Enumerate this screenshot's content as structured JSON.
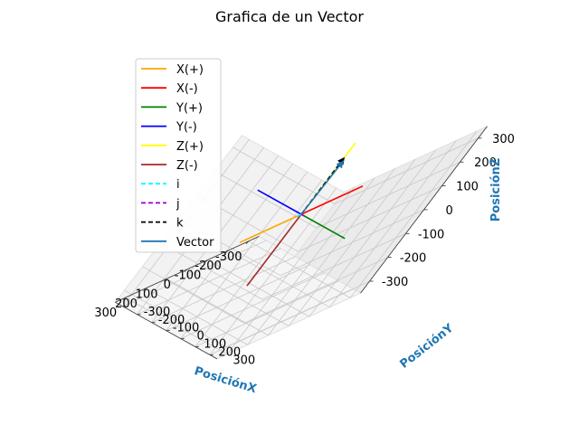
{
  "chart_data": {
    "type": "3d-line",
    "title": "Grafica de un Vector",
    "xlabel": "PosiciónX",
    "ylabel": "PosiciónY",
    "zlabel": "PosiciónZ",
    "xlim": [
      -350,
      350
    ],
    "ylim": [
      -350,
      350
    ],
    "zlim": [
      -350,
      350
    ],
    "x_ticks": [
      -300,
      -200,
      -100,
      0,
      100,
      200,
      300
    ],
    "y_ticks": [
      -300,
      -200,
      -100,
      0,
      100,
      200,
      300
    ],
    "z_ticks": [
      -300,
      -200,
      -100,
      0,
      100,
      200,
      300
    ],
    "grid": true,
    "legend_position": "upper-left",
    "series": [
      {
        "name": "X(+)",
        "color": "#ffa500",
        "style": "solid",
        "from": [
          0,
          0,
          0
        ],
        "to": [
          300,
          0,
          0
        ]
      },
      {
        "name": "X(-)",
        "color": "#ff0000",
        "style": "solid",
        "from": [
          0,
          0,
          0
        ],
        "to": [
          -300,
          0,
          0
        ]
      },
      {
        "name": "Y(+)",
        "color": "#008000",
        "style": "solid",
        "from": [
          0,
          0,
          0
        ],
        "to": [
          0,
          300,
          0
        ]
      },
      {
        "name": "Y(-)",
        "color": "#0000ff",
        "style": "solid",
        "from": [
          0,
          0,
          0
        ],
        "to": [
          0,
          -300,
          0
        ]
      },
      {
        "name": "Z(+)",
        "color": "#ffff00",
        "style": "solid",
        "from": [
          0,
          0,
          0
        ],
        "to": [
          0,
          0,
          300
        ]
      },
      {
        "name": "Z(-)",
        "color": "#a52a2a",
        "style": "solid",
        "from": [
          0,
          0,
          0
        ],
        "to": [
          0,
          0,
          -300
        ]
      },
      {
        "name": "i",
        "color": "#00ffff",
        "style": "dashed",
        "from": [
          0,
          0,
          0
        ],
        "to": [
          20,
          0,
          0
        ]
      },
      {
        "name": "j",
        "color": "#9400d3",
        "style": "dashed",
        "from": [
          0,
          0,
          0
        ],
        "to": [
          0,
          20,
          0
        ]
      },
      {
        "name": "k",
        "color": "#000000",
        "style": "dashed",
        "from": [
          0,
          0,
          0
        ],
        "to": [
          0,
          0,
          240
        ]
      },
      {
        "name": "Vector",
        "color": "#1f77b4",
        "style": "solid",
        "from": [
          0,
          0,
          0
        ],
        "to": [
          20,
          20,
          240
        ]
      }
    ]
  }
}
